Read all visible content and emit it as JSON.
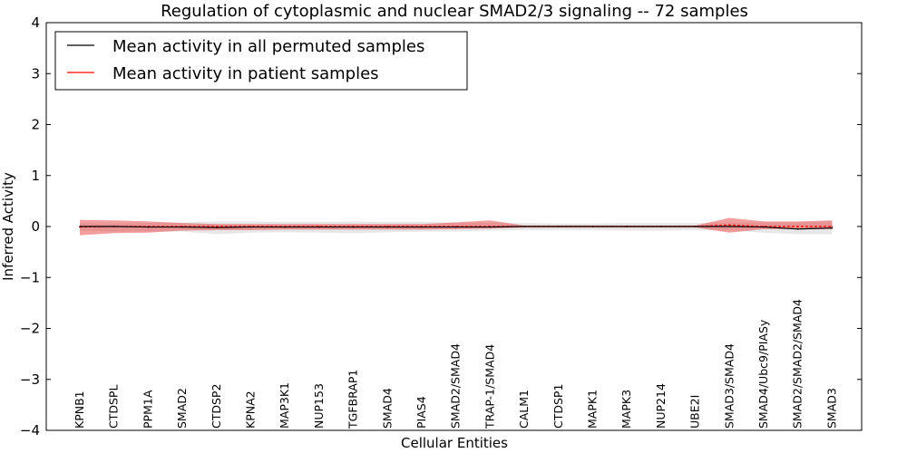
{
  "chart_data": {
    "type": "line",
    "title": "Regulation of cytoplasmic and nuclear SMAD2/3 signaling -- 72 samples",
    "xlabel": "Cellular Entities",
    "ylabel": "Inferred Activity",
    "ylim": [
      -4,
      4
    ],
    "yticks": [
      -4,
      -3,
      -2,
      -1,
      0,
      1,
      2,
      3,
      4
    ],
    "ytick_labels": [
      "−4",
      "−3",
      "−2",
      "−1",
      "0",
      "1",
      "2",
      "3",
      "4"
    ],
    "categories": [
      "KPNB1",
      "CTDSPL",
      "PPM1A",
      "SMAD2",
      "CTDSP2",
      "KPNA2",
      "MAP3K1",
      "NUP153",
      "TGFBRAP1",
      "SMAD4",
      "PIAS4",
      "SMAD2/SMAD4",
      "TRAP-1/SMAD4",
      "CALM1",
      "CTDSP1",
      "MAPK1",
      "MAPK3",
      "NUP214",
      "UBE2I",
      "SMAD3/SMAD4",
      "SMAD4/Ubc9/PIASy",
      "SMAD2/SMAD2/SMAD4",
      "SMAD3"
    ],
    "legend_position": "top-left",
    "series": [
      {
        "name": "Mean activity in all permuted samples",
        "color": "#000000",
        "values": [
          0.0,
          0.0,
          -0.01,
          -0.01,
          -0.02,
          -0.01,
          -0.01,
          -0.01,
          -0.01,
          -0.01,
          -0.01,
          -0.01,
          -0.01,
          0.0,
          0.0,
          0.0,
          0.0,
          0.0,
          0.0,
          0.0,
          -0.01,
          -0.05,
          -0.03
        ],
        "band_low": [
          -0.08,
          -0.1,
          -0.1,
          -0.1,
          -0.15,
          -0.12,
          -0.11,
          -0.12,
          -0.13,
          -0.11,
          -0.1,
          -0.1,
          -0.08,
          -0.07,
          -0.07,
          -0.07,
          -0.08,
          -0.08,
          -0.07,
          -0.08,
          -0.12,
          -0.15,
          -0.15
        ],
        "band_high": [
          0.06,
          0.06,
          0.07,
          0.08,
          0.1,
          0.1,
          0.09,
          0.09,
          0.1,
          0.09,
          0.09,
          0.08,
          0.07,
          0.07,
          0.06,
          0.06,
          0.07,
          0.07,
          0.07,
          0.08,
          0.08,
          0.08,
          0.1
        ],
        "band_color": "#bbbbbb"
      },
      {
        "name": "Mean activity in patient samples",
        "color": "#ff0000",
        "values": [
          -0.01,
          0.0,
          0.0,
          0.0,
          0.0,
          0.0,
          0.0,
          0.0,
          0.0,
          0.0,
          0.0,
          0.0,
          0.0,
          0.0,
          0.0,
          0.0,
          0.0,
          0.0,
          0.0,
          0.03,
          0.0,
          0.0,
          0.0
        ],
        "band_low": [
          -0.17,
          -0.13,
          -0.12,
          -0.08,
          -0.07,
          -0.07,
          -0.06,
          -0.06,
          -0.06,
          -0.06,
          -0.06,
          -0.05,
          -0.04,
          -0.02,
          -0.02,
          -0.02,
          -0.02,
          -0.02,
          -0.02,
          -0.12,
          -0.05,
          -0.05,
          -0.05
        ],
        "band_high": [
          0.13,
          0.12,
          0.1,
          0.07,
          0.05,
          0.05,
          0.05,
          0.05,
          0.05,
          0.05,
          0.05,
          0.08,
          0.12,
          0.02,
          0.02,
          0.02,
          0.02,
          0.02,
          0.02,
          0.17,
          0.1,
          0.1,
          0.12
        ],
        "band_color": "#e84040"
      }
    ]
  }
}
